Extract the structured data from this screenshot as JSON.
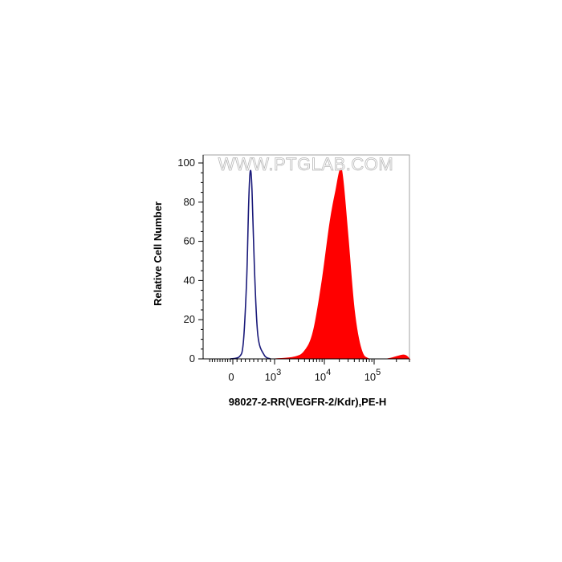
{
  "watermark": "WWW.PTGLAB.COM",
  "chart_data": {
    "type": "area",
    "xlabel": "98027-2-RR(VEGFR-2/Kdr),PE-H",
    "ylabel": "Relative Cell Number",
    "xscale": "biexponential",
    "x_tick_labels": [
      {
        "value": 0,
        "base": "0",
        "exp": ""
      },
      {
        "value": 1000,
        "base": "10",
        "exp": "3"
      },
      {
        "value": 10000,
        "base": "10",
        "exp": "4"
      },
      {
        "value": 100000,
        "base": "10",
        "exp": "5"
      }
    ],
    "y_ticks": [
      0,
      20,
      40,
      60,
      80,
      100
    ],
    "ylim": [
      0,
      100
    ],
    "grid": false,
    "series": [
      {
        "style": "outline",
        "color": "#1a1a7a",
        "points": [
          [
            -100,
            0
          ],
          [
            150,
            1
          ],
          [
            250,
            8
          ],
          [
            330,
            40
          ],
          [
            380,
            80
          ],
          [
            420,
            96
          ],
          [
            460,
            86
          ],
          [
            520,
            45
          ],
          [
            600,
            12
          ],
          [
            750,
            2
          ],
          [
            900,
            0
          ]
        ]
      },
      {
        "style": "filled",
        "color": "#ff0000",
        "points": [
          [
            1000,
            0
          ],
          [
            2500,
            1
          ],
          [
            4000,
            4
          ],
          [
            6000,
            14
          ],
          [
            9000,
            40
          ],
          [
            13000,
            70
          ],
          [
            17000,
            86
          ],
          [
            21000,
            97
          ],
          [
            24000,
            90
          ],
          [
            30000,
            62
          ],
          [
            40000,
            25
          ],
          [
            55000,
            5
          ],
          [
            80000,
            0
          ],
          [
            150000,
            0
          ],
          [
            250000,
            2
          ],
          [
            300000,
            0
          ]
        ]
      }
    ]
  }
}
